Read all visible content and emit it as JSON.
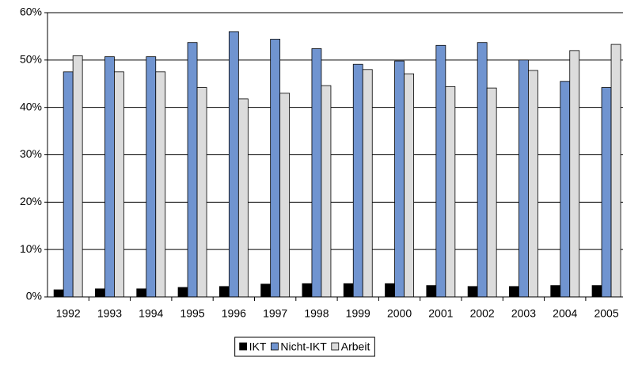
{
  "chart_data": {
    "type": "bar",
    "categories": [
      "1992",
      "1993",
      "1994",
      "1995",
      "1996",
      "1997",
      "1998",
      "1999",
      "2000",
      "2001",
      "2002",
      "2003",
      "2004",
      "2005"
    ],
    "series": [
      {
        "name": "IKT",
        "color": "#000000",
        "values": [
          1.5,
          1.7,
          1.7,
          2.0,
          2.2,
          2.7,
          2.8,
          2.8,
          2.8,
          2.4,
          2.2,
          2.2,
          2.4,
          2.4
        ]
      },
      {
        "name": "Nicht-IKT",
        "color": "#7094d0",
        "values": [
          47.5,
          50.7,
          50.7,
          53.7,
          56.0,
          54.4,
          52.4,
          49.1,
          49.8,
          53.1,
          53.7,
          50.0,
          45.5,
          44.2
        ]
      },
      {
        "name": "Arbeit",
        "color": "#dcdcdc",
        "values": [
          50.9,
          47.5,
          47.5,
          44.2,
          41.8,
          43.0,
          44.6,
          48.0,
          47.1,
          44.4,
          44.1,
          47.8,
          52.0,
          53.3
        ]
      }
    ],
    "ylim": [
      0,
      60
    ],
    "yticks": [
      {
        "value": 0,
        "label": "0%"
      },
      {
        "value": 10,
        "label": "10%"
      },
      {
        "value": 20,
        "label": "20%"
      },
      {
        "value": 30,
        "label": "30%"
      },
      {
        "value": 40,
        "label": "40%"
      },
      {
        "value": 50,
        "label": "50%"
      },
      {
        "value": 60,
        "label": "60%"
      }
    ],
    "grid": true,
    "legend": "bottom"
  }
}
